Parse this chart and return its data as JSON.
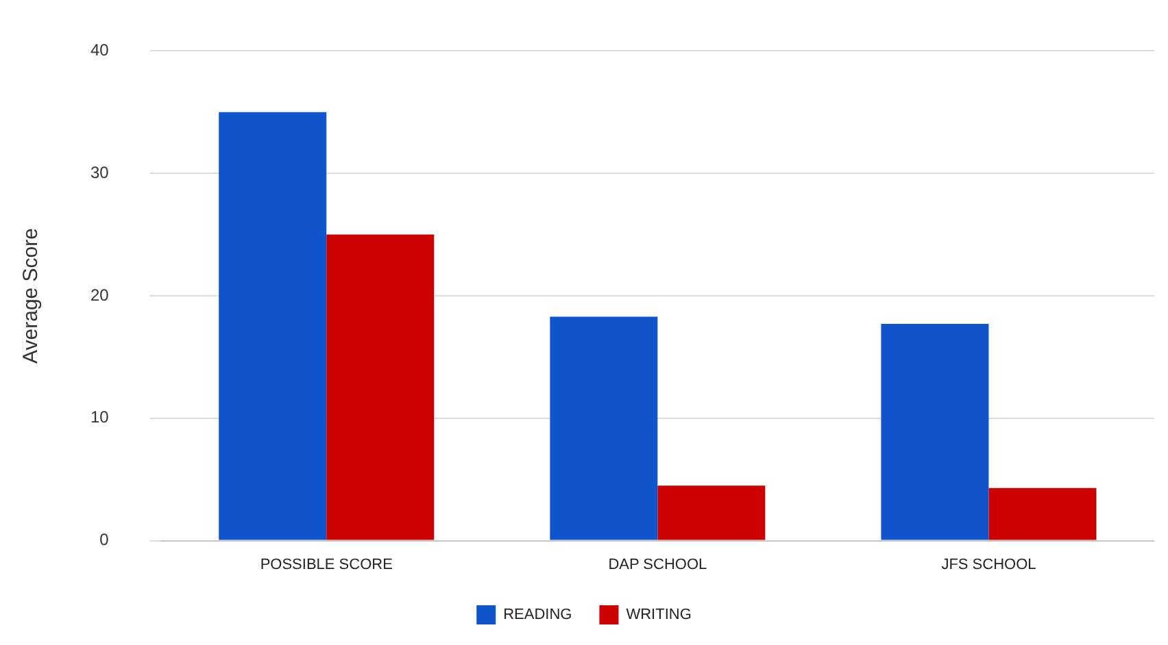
{
  "chart_data": {
    "type": "bar",
    "ylabel": "Average Score",
    "categories": [
      "POSSIBLE SCORE",
      "DAP SCHOOL",
      "JFS SCHOOL"
    ],
    "series": [
      {
        "name": "READING",
        "color": "#1155cc",
        "values": [
          35,
          18.3,
          17.7
        ]
      },
      {
        "name": "WRITING",
        "color": "#cc0000",
        "values": [
          25,
          4.5,
          4.3
        ]
      }
    ],
    "ylim": [
      0,
      40
    ],
    "yticks": [
      0,
      10,
      20,
      30,
      40
    ],
    "grid": "y",
    "legend": "bottom"
  }
}
